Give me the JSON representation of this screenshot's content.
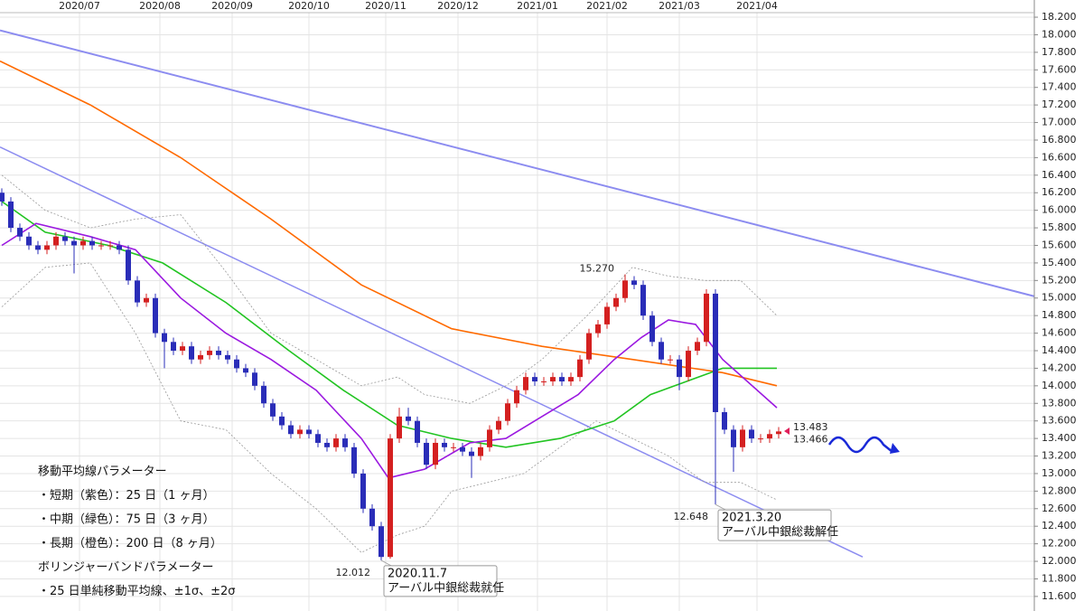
{
  "chart_data": {
    "type": "candlestick",
    "xlim": [
      -0.2,
      114.3
    ],
    "ylim": [
      11.434,
      18.396
    ],
    "grid": true,
    "xticks": [
      {
        "value": 8.6,
        "label": "2020/07"
      },
      {
        "value": 17.5,
        "label": "2020/08"
      },
      {
        "value": 25.5,
        "label": "2020/09"
      },
      {
        "value": 34,
        "label": "2020/10"
      },
      {
        "value": 42.5,
        "label": "2020/11"
      },
      {
        "value": 50.5,
        "label": "2020/12"
      },
      {
        "value": 59.3,
        "label": "2021/01"
      },
      {
        "value": 67,
        "label": "2021/02"
      },
      {
        "value": 75,
        "label": "2021/03"
      },
      {
        "value": 83.6,
        "label": "2021/04"
      }
    ],
    "yticks": [
      {
        "value": 11.6,
        "label": "11.600"
      },
      {
        "value": 11.8,
        "label": "11.800"
      },
      {
        "value": 12,
        "label": "12.000"
      },
      {
        "value": 12.2,
        "label": "12.200"
      },
      {
        "value": 12.4,
        "label": "12.400"
      },
      {
        "value": 12.6,
        "label": "12.600"
      },
      {
        "value": 12.8,
        "label": "12.800"
      },
      {
        "value": 13,
        "label": "13.000"
      },
      {
        "value": 13.2,
        "label": "13.200"
      },
      {
        "value": 13.4,
        "label": "13.400"
      },
      {
        "value": 13.6,
        "label": "13.600"
      },
      {
        "value": 13.8,
        "label": "13.800"
      },
      {
        "value": 14,
        "label": "14.000"
      },
      {
        "value": 14.2,
        "label": "14.200"
      },
      {
        "value": 14.4,
        "label": "14.400"
      },
      {
        "value": 14.6,
        "label": "14.600"
      },
      {
        "value": 14.8,
        "label": "14.800"
      },
      {
        "value": 15,
        "label": "15.000"
      },
      {
        "value": 15.2,
        "label": "15.200"
      },
      {
        "value": 15.4,
        "label": "15.400"
      },
      {
        "value": 15.6,
        "label": "15.600"
      },
      {
        "value": 15.8,
        "label": "15.800"
      },
      {
        "value": 16,
        "label": "16.000"
      },
      {
        "value": 16.2,
        "label": "16.200"
      },
      {
        "value": 16.4,
        "label": "16.400"
      },
      {
        "value": 16.6,
        "label": "16.600"
      },
      {
        "value": 16.8,
        "label": "16.800"
      },
      {
        "value": 17,
        "label": "17.000"
      },
      {
        "value": 17.2,
        "label": "17.200"
      },
      {
        "value": 17.4,
        "label": "17.400"
      },
      {
        "value": 17.6,
        "label": "17.600"
      },
      {
        "value": 17.8,
        "label": "17.800"
      },
      {
        "value": 18,
        "label": "18.000"
      },
      {
        "value": 18.2,
        "label": "18.200"
      }
    ],
    "up_color": "#d42020",
    "down_color": "#2a2db8",
    "ohlc": {
      "open": [
        16.2,
        16.1,
        15.8,
        15.7,
        15.6,
        15.55,
        15.6,
        15.7,
        15.65,
        15.6,
        15.65,
        15.6,
        15.6,
        15.6,
        15.55,
        15.2,
        14.95,
        15.0,
        14.6,
        14.5,
        14.4,
        14.45,
        14.3,
        14.35,
        14.4,
        14.35,
        14.3,
        14.2,
        14.15,
        14.0,
        13.8,
        13.65,
        13.55,
        13.45,
        13.5,
        13.45,
        13.35,
        13.3,
        13.4,
        13.3,
        13.0,
        12.6,
        12.4,
        12.05,
        13.4,
        13.65,
        13.6,
        13.35,
        13.1,
        13.35,
        13.3,
        13.3,
        13.25,
        13.2,
        13.3,
        13.5,
        13.6,
        13.8,
        13.95,
        14.1,
        14.05,
        14.05,
        14.1,
        14.05,
        14.1,
        14.3,
        14.6,
        14.7,
        14.9,
        15.0,
        15.2,
        15.15,
        14.8,
        14.5,
        14.3,
        14.3,
        14.1,
        14.4,
        14.5,
        15.05,
        13.7,
        13.5,
        13.3,
        13.5,
        13.4,
        13.4,
        13.45
      ],
      "high": [
        16.25,
        16.15,
        15.85,
        15.75,
        15.65,
        15.65,
        15.75,
        15.75,
        15.7,
        15.7,
        15.7,
        15.65,
        15.65,
        15.65,
        15.6,
        15.25,
        15.05,
        15.05,
        14.65,
        14.55,
        14.5,
        14.5,
        14.4,
        14.45,
        14.45,
        14.4,
        14.35,
        14.25,
        14.2,
        14.05,
        13.85,
        13.7,
        13.6,
        13.55,
        13.55,
        13.5,
        13.4,
        13.45,
        13.45,
        13.35,
        13.05,
        12.65,
        12.45,
        13.45,
        13.75,
        13.75,
        13.65,
        13.4,
        13.4,
        13.4,
        13.35,
        13.35,
        13.3,
        13.35,
        13.55,
        13.65,
        13.85,
        14.0,
        14.15,
        14.15,
        14.1,
        14.15,
        14.15,
        14.15,
        14.35,
        14.65,
        14.75,
        14.95,
        15.05,
        15.27,
        15.25,
        15.2,
        14.85,
        14.55,
        14.35,
        14.35,
        14.45,
        14.55,
        15.1,
        15.1,
        13.75,
        13.55,
        13.55,
        13.55,
        13.45,
        13.5,
        13.53
      ],
      "low": [
        16.05,
        15.75,
        15.65,
        15.55,
        15.5,
        15.5,
        15.55,
        15.6,
        15.28,
        15.55,
        15.55,
        15.55,
        15.55,
        15.5,
        15.15,
        14.9,
        14.9,
        14.55,
        14.2,
        14.35,
        14.35,
        14.25,
        14.25,
        14.3,
        14.3,
        14.25,
        14.15,
        14.1,
        13.95,
        13.75,
        13.6,
        13.5,
        13.4,
        13.4,
        13.4,
        13.3,
        13.25,
        13.25,
        13.25,
        12.95,
        12.55,
        12.35,
        12.012,
        12.03,
        13.35,
        13.55,
        13.3,
        13.05,
        13.05,
        13.25,
        13.25,
        13.2,
        12.95,
        13.15,
        13.25,
        13.45,
        13.55,
        13.75,
        13.9,
        14.0,
        14.0,
        14.0,
        14.0,
        14.0,
        14.05,
        14.25,
        14.55,
        14.65,
        14.85,
        14.95,
        15.1,
        14.75,
        14.45,
        14.25,
        14.25,
        13.95,
        14.05,
        14.35,
        14.45,
        12.648,
        13.45,
        13.02,
        13.25,
        13.35,
        13.35,
        13.35,
        13.4
      ],
      "close": [
        16.1,
        15.8,
        15.7,
        15.6,
        15.55,
        15.6,
        15.7,
        15.65,
        15.6,
        15.65,
        15.6,
        15.6,
        15.6,
        15.55,
        15.2,
        14.95,
        15.0,
        14.6,
        14.5,
        14.4,
        14.45,
        14.3,
        14.35,
        14.4,
        14.35,
        14.3,
        14.2,
        14.15,
        14.0,
        13.8,
        13.65,
        13.55,
        13.45,
        13.5,
        13.45,
        13.35,
        13.3,
        13.4,
        13.3,
        13.0,
        12.6,
        12.4,
        12.05,
        13.4,
        13.65,
        13.6,
        13.35,
        13.1,
        13.35,
        13.3,
        13.3,
        13.25,
        13.2,
        13.3,
        13.5,
        13.6,
        13.8,
        13.95,
        14.1,
        14.05,
        14.05,
        14.1,
        14.05,
        14.1,
        14.3,
        14.6,
        14.7,
        14.9,
        15.0,
        15.2,
        15.15,
        14.8,
        14.5,
        14.3,
        14.3,
        14.1,
        14.4,
        14.5,
        15.05,
        13.7,
        13.5,
        13.3,
        13.5,
        13.4,
        13.4,
        13.45,
        13.48
      ]
    },
    "series": [
      {
        "color": "#8c8cf0",
        "style": "solid",
        "width": 2,
        "x": [
          -0.2,
          114.3
        ],
        "values": [
          18.05,
          15.02
        ]
      },
      {
        "color": "#8c8cf0",
        "style": "solid",
        "width": 1.5,
        "x": [
          -0.2,
          95.3
        ],
        "values": [
          16.72,
          12.05
        ]
      },
      {
        "color": "#999999",
        "style": "dashed",
        "width": 0.8,
        "x": [
          0,
          4.8,
          9.8,
          14.8,
          19.8,
          24.8,
          29.8,
          34.8,
          39.8,
          43.8,
          46.8,
          51.8,
          55.8,
          59.8,
          64.8,
          69.8,
          73.8,
          77.8,
          81.8,
          85.8
        ],
        "values": [
          16.4,
          16.0,
          15.8,
          15.9,
          15.95,
          15.3,
          14.6,
          14.3,
          14.0,
          14.1,
          13.9,
          13.8,
          14.0,
          14.3,
          14.8,
          15.35,
          15.25,
          15.2,
          15.2,
          14.8
        ]
      },
      {
        "color": "#999999",
        "style": "dashed",
        "width": 0.8,
        "x": [
          0,
          4.8,
          9.8,
          14.8,
          19.8,
          24.8,
          29.8,
          34.8,
          39.8,
          43.8,
          46.8,
          49.8,
          53.8,
          57.8,
          61.8,
          65.8,
          69.8,
          73.8,
          77.8,
          81.8,
          85.8
        ],
        "values": [
          14.9,
          15.35,
          15.4,
          14.6,
          13.6,
          13.5,
          13.0,
          12.6,
          12.1,
          12.3,
          12.4,
          12.8,
          12.9,
          13.0,
          13.3,
          13.6,
          13.4,
          13.2,
          12.9,
          12.9,
          12.7
        ]
      },
      {
        "color": "#ff6a00",
        "style": "solid",
        "width": 1.6,
        "x": [
          -0.2,
          9.8,
          19.8,
          29.8,
          39.8,
          49.8,
          59.8,
          69.8,
          79.8,
          85.8
        ],
        "values": [
          17.7,
          17.2,
          16.6,
          15.9,
          15.15,
          14.65,
          14.45,
          14.3,
          14.15,
          14.0
        ]
      },
      {
        "color": "#22c422",
        "style": "solid",
        "width": 1.6,
        "x": [
          0,
          4.8,
          11.8,
          17.8,
          24.8,
          31.8,
          37.8,
          43.8,
          49.8,
          55.8,
          61.8,
          67.8,
          71.8,
          75.8,
          79.8,
          85.8
        ],
        "values": [
          16.1,
          15.75,
          15.6,
          15.4,
          14.95,
          14.4,
          13.95,
          13.55,
          13.4,
          13.3,
          13.4,
          13.6,
          13.9,
          14.05,
          14.2,
          14.2
        ]
      },
      {
        "color": "#9b19e0",
        "style": "solid",
        "width": 1.6,
        "x": [
          0,
          3.8,
          9.8,
          14.8,
          19.8,
          24.8,
          29.8,
          34.8,
          39.8,
          42.8,
          46.8,
          51.8,
          55.8,
          59.8,
          63.8,
          67.8,
          70.8,
          73.8,
          76.8,
          79.8,
          85.8
        ],
        "values": [
          15.6,
          15.85,
          15.7,
          15.55,
          15.0,
          14.6,
          14.3,
          13.95,
          13.4,
          12.95,
          13.05,
          13.35,
          13.4,
          13.65,
          13.9,
          14.3,
          14.55,
          14.75,
          14.7,
          14.3,
          13.75
        ]
      }
    ],
    "annotations": [
      {
        "x": 69,
        "value": 15.27,
        "label": "15.270",
        "color": "#ff6a00"
      },
      {
        "x": 42,
        "value": 12.012,
        "label": "12.012",
        "color": "#22b022"
      },
      {
        "x": 79,
        "value": 12.648,
        "label": "12.648",
        "color": "#22b022"
      },
      {
        "x": 86,
        "value": 13.483,
        "label": "13.483",
        "color": "#e0205a"
      },
      {
        "x": 86,
        "value": 13.466,
        "label": "13.466",
        "color": "#1aa8e0"
      }
    ],
    "events": [
      {
        "x": 42,
        "value": 12.012,
        "date": "2020.11.7",
        "text": "アーバル中銀総裁就任"
      },
      {
        "x": 79,
        "value": 12.648,
        "date": "2021.3.20",
        "text": "アーバル中銀総裁解任"
      }
    ],
    "notes": [
      "移動平均線パラメーター",
      "・短期（紫色）：25 日（1 ヶ月）",
      "・中期（緑色）：75 日（3 ヶ月）",
      "・長期（橙色）：200 日（8 ヶ月）",
      "ボリンジャーバンドパラメーター",
      "・25 日単純移動平均線、±1σ、±2σ"
    ]
  }
}
